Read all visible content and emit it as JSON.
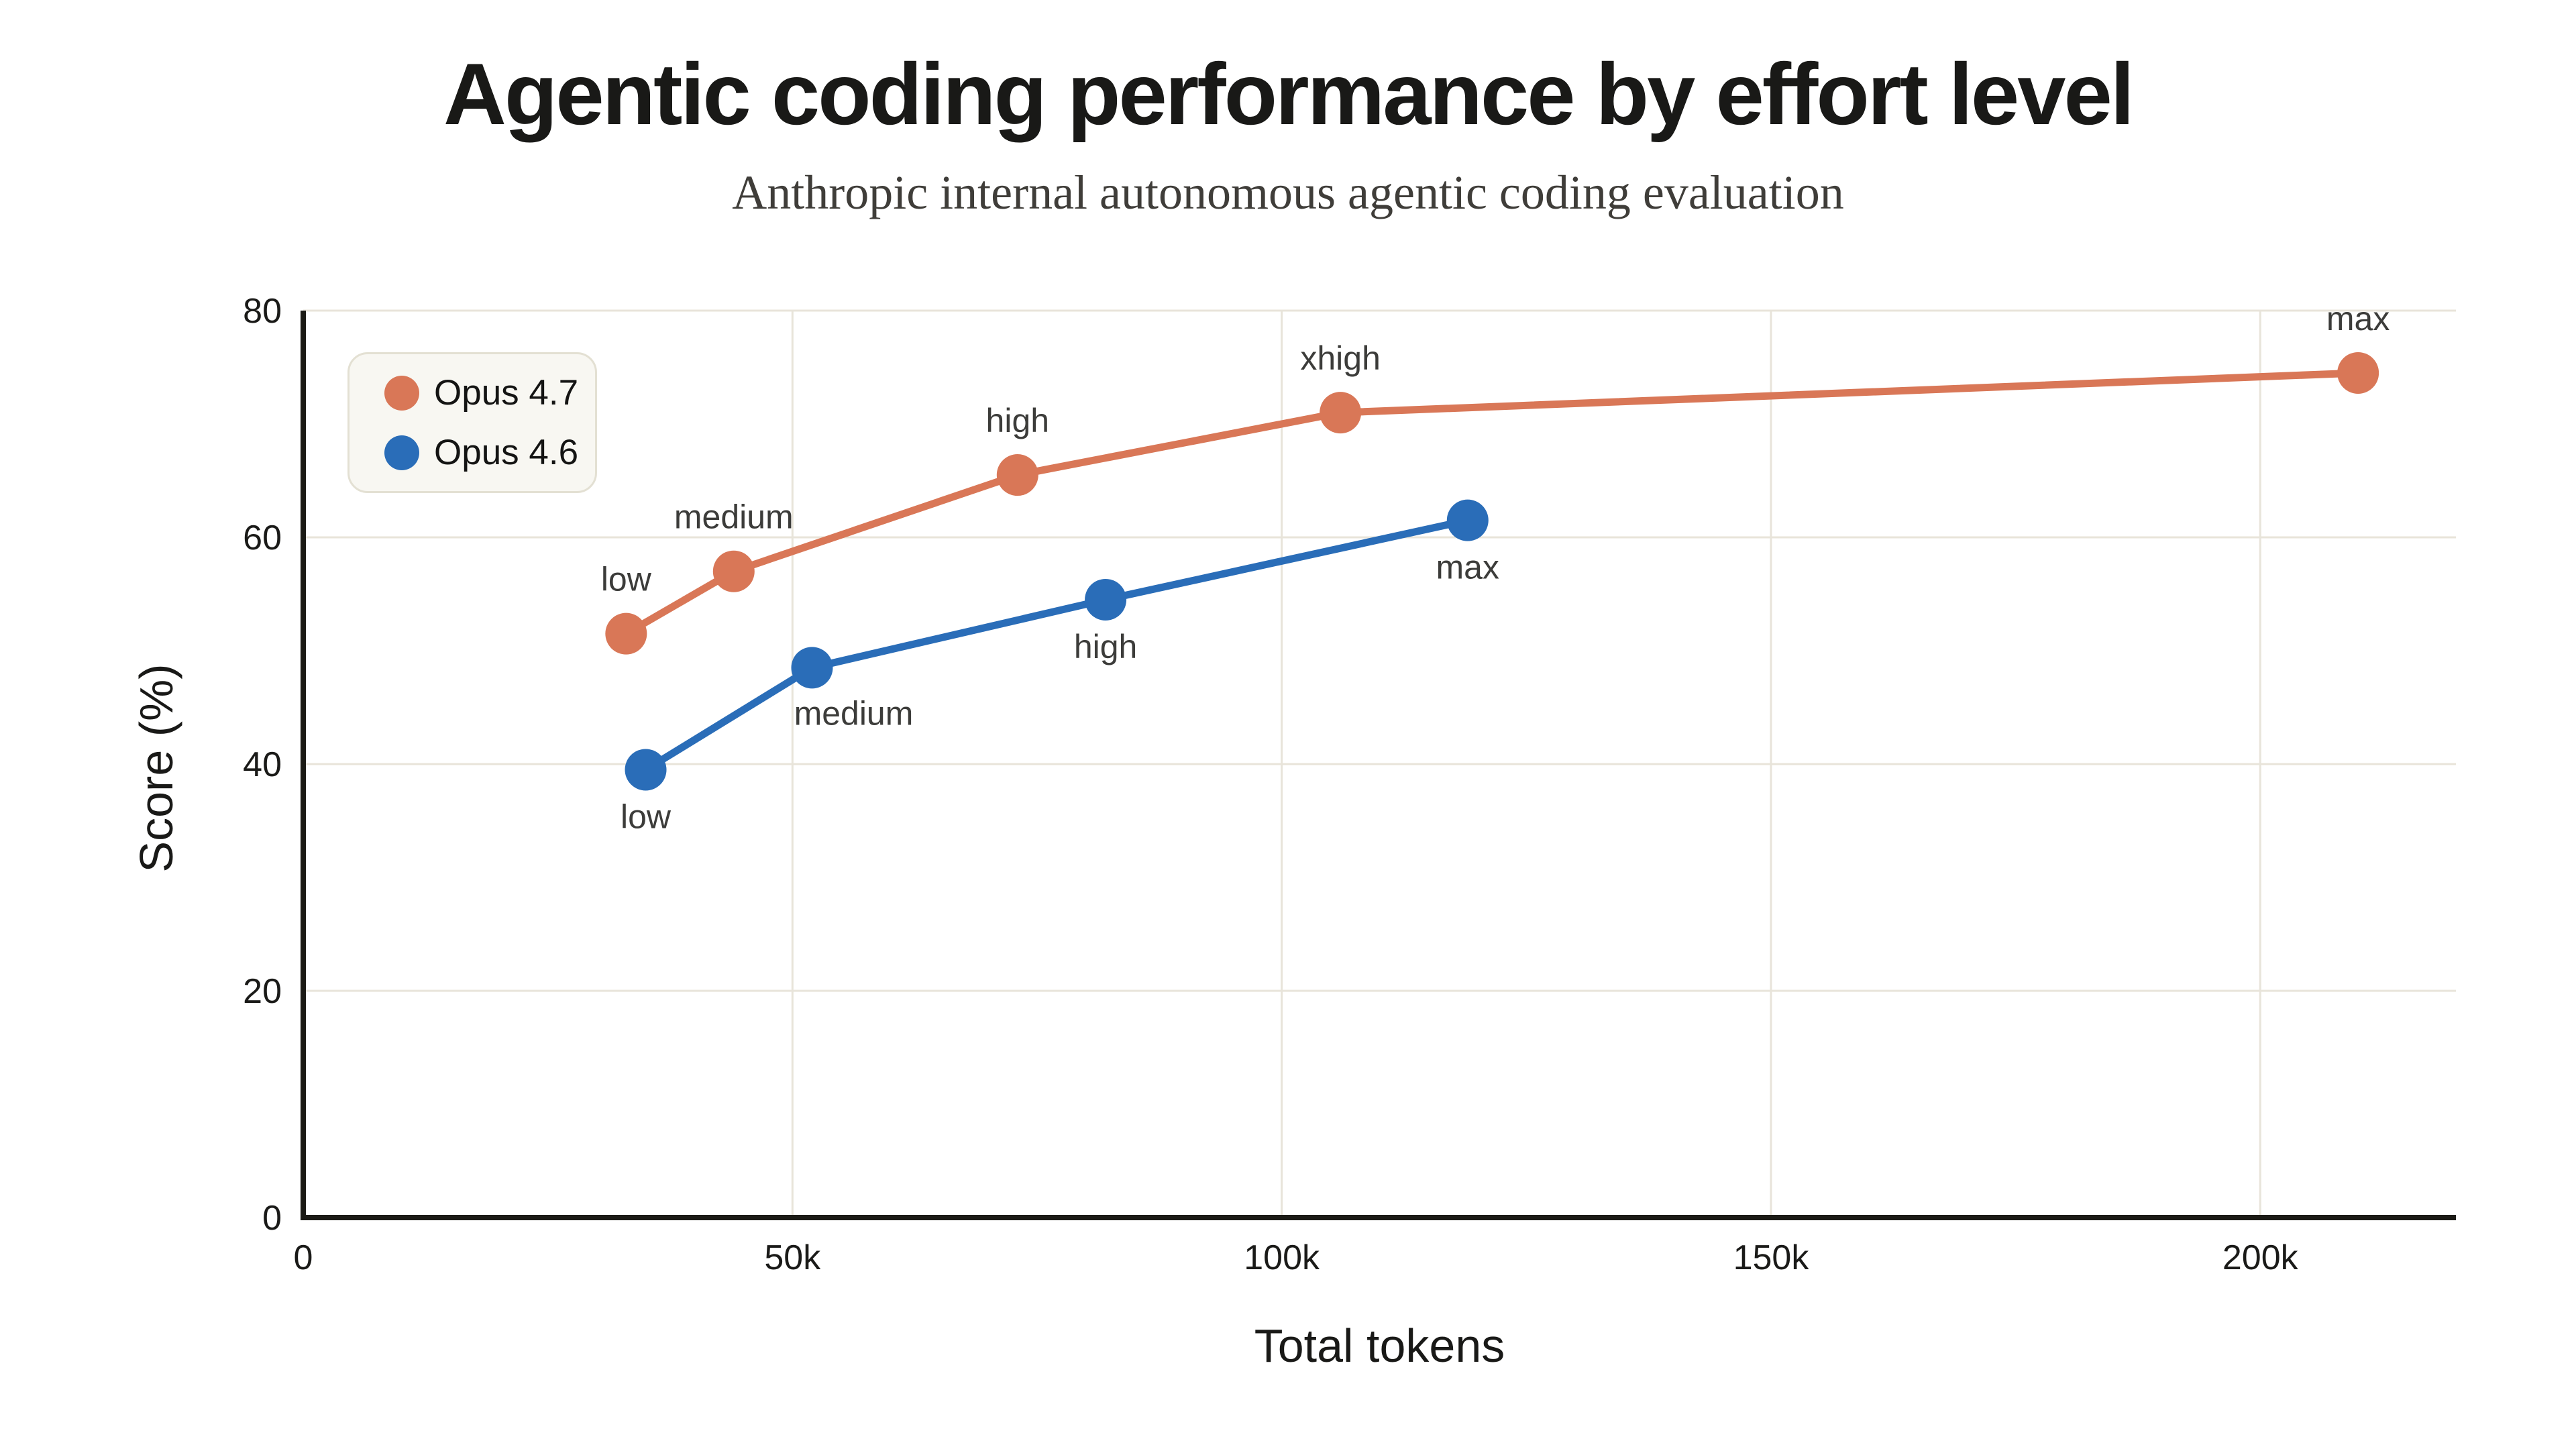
{
  "chart_data": {
    "type": "line",
    "title": "Agentic coding performance by effort level",
    "subtitle": "Anthropic internal autonomous agentic coding evaluation",
    "xlabel": "Total tokens",
    "ylabel": "Score (%)",
    "xlim": [
      0,
      220000
    ],
    "ylim": [
      0,
      80
    ],
    "grid": true,
    "legend_position": "top-left",
    "x_ticks": [
      {
        "value": 0,
        "label": "0"
      },
      {
        "value": 50000,
        "label": "50k"
      },
      {
        "value": 100000,
        "label": "100k"
      },
      {
        "value": 150000,
        "label": "150k"
      },
      {
        "value": 200000,
        "label": "200k"
      }
    ],
    "y_ticks": [
      {
        "value": 0,
        "label": "0"
      },
      {
        "value": 20,
        "label": "20"
      },
      {
        "value": 40,
        "label": "40"
      },
      {
        "value": 60,
        "label": "60"
      },
      {
        "value": 80,
        "label": "80"
      }
    ],
    "series": [
      {
        "name": "Opus 4.7",
        "color": "#D97757",
        "points": [
          {
            "x": 33000,
            "y": 51.5,
            "label": "low",
            "label_pos": "above"
          },
          {
            "x": 44000,
            "y": 57,
            "label": "medium",
            "label_pos": "above"
          },
          {
            "x": 73000,
            "y": 65.5,
            "label": "high",
            "label_pos": "above"
          },
          {
            "x": 106000,
            "y": 71,
            "label": "xhigh",
            "label_pos": "above"
          },
          {
            "x": 210000,
            "y": 74.5,
            "label": "max",
            "label_pos": "above"
          }
        ]
      },
      {
        "name": "Opus 4.6",
        "color": "#2A6DB8",
        "points": [
          {
            "x": 35000,
            "y": 39.5,
            "label": "low",
            "label_pos": "below"
          },
          {
            "x": 52000,
            "y": 48.5,
            "label": "medium",
            "label_pos": "below-right"
          },
          {
            "x": 82000,
            "y": 54.5,
            "label": "high",
            "label_pos": "below"
          },
          {
            "x": 119000,
            "y": 61.5,
            "label": "max",
            "label_pos": "below"
          }
        ]
      }
    ]
  },
  "colors": {
    "background": "#FFFFFF",
    "accent_orange": "#D97757",
    "accent_blue": "#2A6DB8",
    "grid": "#E8E4DA",
    "axis": "#1B1A15",
    "title_text": "#191917",
    "subtitle_text": "#3F3D39",
    "tick_text": "#1A1A18",
    "point_label_text": "#3C3C3A",
    "legend_bg": "#F8F7F2",
    "legend_border": "#E3E0D3"
  }
}
